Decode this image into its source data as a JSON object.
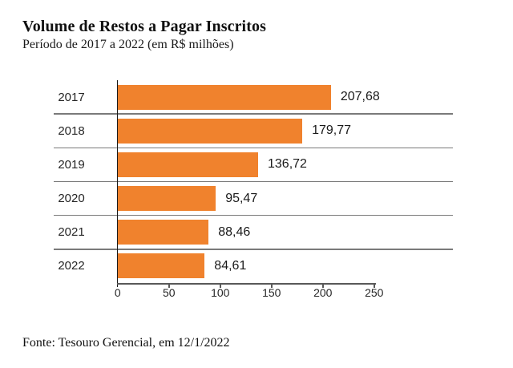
{
  "header": {
    "title": "Volume de Restos a Pagar Inscritos",
    "subtitle": "Período de 2017 a 2022 (em R$ milhões)"
  },
  "footer": {
    "source": "Fonte: Tesouro Gerencial, em 12/1/2022"
  },
  "chart_data": {
    "type": "bar",
    "orientation": "horizontal",
    "title": "Volume de Restos a Pagar Inscritos",
    "subtitle": "Período de 2017 a 2022 (em R$ milhões)",
    "categories": [
      "2017",
      "2018",
      "2019",
      "2020",
      "2021",
      "2022"
    ],
    "values": [
      207.68,
      179.77,
      136.72,
      95.47,
      88.46,
      84.61
    ],
    "value_labels": [
      "207,68",
      "179,77",
      "136,72",
      "95,47",
      "88,46",
      "84,61"
    ],
    "x_ticks": [
      0,
      50,
      100,
      150,
      200,
      250
    ],
    "xlim": [
      0,
      250
    ],
    "xlabel": "",
    "ylabel": "",
    "unit": "R$ milhões",
    "bar_color": "#F0822D",
    "separator_color": "#7a7a7a",
    "axis_color": "#595959",
    "grid": "horizontal-row-separators",
    "legend": "none",
    "source": "Fonte: Tesouro Gerencial, em 12/1/2022"
  }
}
